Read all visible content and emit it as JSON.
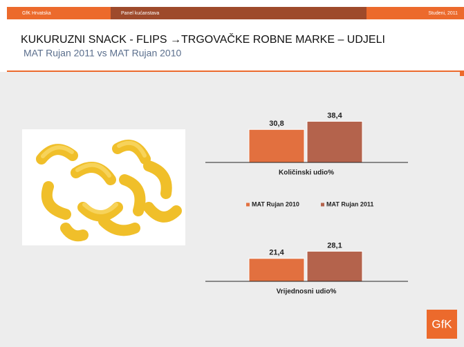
{
  "header": {
    "left": "GfK Hrvatska",
    "center": "Panel kućanstava",
    "right": "Studeni, 2011"
  },
  "title": "KUKURUZNI SNACK - FLIPS →TRGOVAČKE ROBNE MARKE – UDJELI",
  "subtitle": "MAT Rujan 2011 vs MAT Rujan 2010",
  "logo": "GfK",
  "chart_data": [
    {
      "type": "bar",
      "categories": [
        "Količinski udio%"
      ],
      "ylim": [
        0,
        40
      ],
      "series": [
        {
          "name": "MAT Rujan 2010",
          "color": "#e2703f",
          "values": [
            30.8
          ],
          "value_labels": [
            "30,8"
          ]
        },
        {
          "name": "MAT Rujan 2011",
          "color": "#b4634c",
          "values": [
            38.4
          ],
          "value_labels": [
            "38,4"
          ]
        }
      ]
    },
    {
      "type": "bar",
      "categories": [
        "Vrijednosni udio%"
      ],
      "ylim": [
        0,
        40
      ],
      "series": [
        {
          "color": "#e2703f",
          "values": [
            21.4
          ],
          "value_labels": [
            "21,4"
          ]
        },
        {
          "color": "#b4634c",
          "values": [
            28.1
          ],
          "value_labels": [
            "28,1"
          ]
        }
      ]
    }
  ]
}
